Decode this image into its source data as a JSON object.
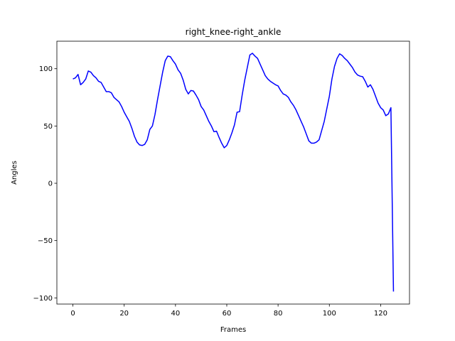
{
  "chart_data": {
    "type": "line",
    "title": "right_knee-right_ankle",
    "xlabel": "Frames",
    "ylabel": "Angles",
    "color": "#0000ff",
    "x": [
      0,
      1,
      2,
      3,
      4,
      5,
      6,
      7,
      8,
      9,
      10,
      11,
      12,
      13,
      14,
      15,
      16,
      17,
      18,
      19,
      20,
      21,
      22,
      23,
      24,
      25,
      26,
      27,
      28,
      29,
      30,
      31,
      32,
      33,
      34,
      35,
      36,
      37,
      38,
      39,
      40,
      41,
      42,
      43,
      44,
      45,
      46,
      47,
      48,
      49,
      50,
      51,
      52,
      53,
      54,
      55,
      56,
      57,
      58,
      59,
      60,
      61,
      62,
      63,
      64,
      65,
      66,
      67,
      68,
      69,
      70,
      71,
      72,
      73,
      74,
      75,
      76,
      77,
      78,
      79,
      80,
      81,
      82,
      83,
      84,
      85,
      86,
      87,
      88,
      89,
      90,
      91,
      92,
      93,
      94,
      95,
      96,
      97,
      98,
      99,
      100,
      101,
      102,
      103,
      104,
      105,
      106,
      107,
      108,
      109,
      110,
      111,
      112,
      113,
      114,
      115,
      116,
      117,
      118,
      119,
      120,
      121,
      122,
      123,
      124,
      125
    ],
    "values": [
      91,
      92,
      95,
      86,
      88,
      91,
      98,
      97,
      94,
      92,
      89,
      88,
      84,
      80,
      80,
      79,
      75,
      73,
      71,
      67,
      62,
      58,
      54,
      48,
      41,
      36,
      33.5,
      33,
      34,
      38,
      47,
      50,
      60,
      73,
      85,
      97,
      107,
      111,
      110.5,
      107,
      104,
      99,
      96,
      90,
      82,
      78,
      81,
      80.5,
      77,
      73,
      67,
      64,
      59,
      54,
      50,
      45,
      45.5,
      40,
      35,
      31,
      33,
      38,
      44,
      51,
      62,
      62.5,
      77,
      90,
      101,
      112,
      113.5,
      111,
      109,
      104,
      99,
      94,
      91,
      89,
      87.5,
      86,
      85,
      81,
      78,
      77,
      75,
      71,
      68,
      64,
      59,
      54,
      49,
      43,
      37,
      35,
      35,
      36,
      38,
      46,
      54,
      65,
      76,
      91,
      102,
      109,
      113,
      111.5,
      109,
      107,
      104,
      101,
      97,
      94.5,
      93.5,
      93,
      89,
      84,
      86,
      82,
      76,
      70,
      66,
      64,
      59,
      60.5,
      66,
      -94.5
    ],
    "xlim": [
      -6.25,
      131.25
    ],
    "xticks": [
      0,
      20,
      40,
      60,
      80,
      100,
      120
    ],
    "ylim": [
      -105.4,
      124
    ],
    "yticks": [
      {
        "value": -100,
        "label": "−100"
      },
      {
        "value": -50,
        "label": "−50"
      },
      0,
      50,
      100
    ]
  }
}
